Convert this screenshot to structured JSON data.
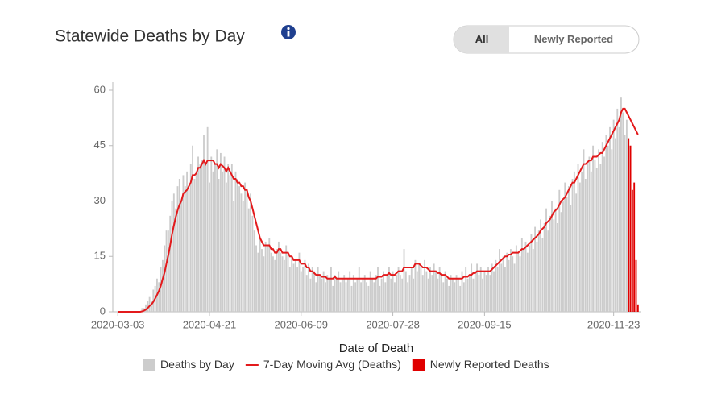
{
  "header": {
    "title": "Statewide Deaths by Day",
    "buttons": [
      "All",
      "Newly Reported"
    ]
  },
  "chart_data": {
    "type": "bar",
    "x_label": "Date of Death",
    "categories": [
      "2020-03-03",
      null,
      null,
      null,
      null,
      null,
      null,
      null,
      null,
      null,
      null,
      null,
      null,
      null,
      null,
      null,
      null,
      null,
      null,
      null,
      null,
      null,
      null,
      null,
      null,
      null,
      null,
      null,
      null,
      null,
      null,
      null,
      null,
      null,
      null,
      null,
      null,
      null,
      null,
      null,
      null,
      null,
      null,
      null,
      null,
      null,
      null,
      null,
      null,
      "2020-04-21",
      null,
      null,
      null,
      null,
      null,
      null,
      null,
      null,
      null,
      null,
      null,
      null,
      null,
      null,
      null,
      null,
      null,
      null,
      null,
      null,
      null,
      null,
      null,
      null,
      null,
      null,
      null,
      null,
      null,
      null,
      null,
      null,
      null,
      null,
      null,
      null,
      null,
      null,
      null,
      null,
      null,
      null,
      null,
      null,
      null,
      null,
      null,
      null,
      "2020-06-09",
      null,
      null,
      null,
      null,
      null,
      null,
      null,
      null,
      null,
      null,
      null,
      null,
      null,
      null,
      null,
      null,
      null,
      null,
      null,
      null,
      null,
      null,
      null,
      null,
      null,
      null,
      null,
      null,
      null,
      null,
      null,
      null,
      null,
      null,
      null,
      null,
      null,
      null,
      null,
      null,
      null,
      null,
      null,
      null,
      null,
      null,
      null,
      null,
      "2020-07-28",
      null,
      null,
      null,
      null,
      null,
      null,
      null,
      null,
      null,
      null,
      null,
      null,
      null,
      null,
      null,
      null,
      null,
      null,
      null,
      null,
      null,
      null,
      null,
      null,
      null,
      null,
      null,
      null,
      null,
      null,
      null,
      null,
      null,
      null,
      null,
      null,
      null,
      null,
      null,
      null,
      null,
      null,
      null,
      null,
      null,
      null,
      null,
      null,
      "2020-09-15",
      null,
      null,
      null,
      null,
      null,
      null,
      null,
      null,
      null,
      null,
      null,
      null,
      null,
      null,
      null,
      null,
      null,
      null,
      null,
      null,
      null,
      null,
      null,
      null,
      null,
      null,
      null,
      null,
      null,
      null,
      null,
      null,
      null,
      null,
      null,
      null,
      null,
      null,
      null,
      null,
      null,
      null,
      null,
      null,
      null,
      null,
      null,
      null,
      null,
      null,
      null,
      null,
      null,
      null,
      null,
      null,
      null,
      null,
      null,
      null,
      null,
      null,
      null,
      null,
      null,
      null,
      null,
      null,
      "2020-11-23",
      null,
      null,
      null,
      null,
      null,
      null,
      null,
      null,
      null,
      null,
      null,
      null,
      null
    ],
    "ylim": [
      0,
      60
    ],
    "yticks": [
      0,
      15,
      30,
      45,
      60
    ],
    "series": [
      {
        "name": "Deaths by Day",
        "kind": "bar",
        "color": "#cccccc",
        "values": [
          0,
          0,
          0,
          0,
          0,
          0,
          0,
          0,
          0,
          0,
          0,
          0,
          0,
          1,
          1,
          2,
          3,
          4,
          3,
          6,
          7,
          9,
          8,
          12,
          14,
          18,
          22,
          22,
          26,
          30,
          32,
          28,
          34,
          36,
          30,
          37,
          34,
          38,
          33,
          40,
          45,
          36,
          38,
          42,
          40,
          41,
          48,
          40,
          50,
          35,
          42,
          38,
          40,
          44,
          36,
          43,
          38,
          42,
          35,
          40,
          37,
          40,
          30,
          38,
          36,
          34,
          32,
          30,
          35,
          33,
          28,
          32,
          26,
          22,
          18,
          16,
          20,
          17,
          15,
          19,
          18,
          20,
          16,
          15,
          14,
          17,
          19,
          16,
          15,
          14,
          18,
          16,
          12,
          15,
          13,
          14,
          12,
          16,
          11,
          12,
          14,
          10,
          13,
          9,
          12,
          11,
          8,
          12,
          10,
          9,
          11,
          8,
          10,
          9,
          12,
          7,
          10,
          9,
          11,
          8,
          9,
          10,
          8,
          9,
          11,
          7,
          10,
          8,
          9,
          12,
          8,
          9,
          10,
          8,
          7,
          11,
          9,
          8,
          10,
          12,
          7,
          9,
          11,
          8,
          10,
          12,
          9,
          11,
          8,
          10,
          12,
          10,
          9,
          17,
          11,
          8,
          10,
          12,
          9,
          14,
          11,
          13,
          12,
          10,
          14,
          11,
          9,
          12,
          10,
          13,
          11,
          9,
          12,
          10,
          8,
          11,
          9,
          7,
          10,
          9,
          8,
          10,
          9,
          7,
          11,
          8,
          12,
          9,
          10,
          13,
          9,
          11,
          13,
          10,
          12,
          9,
          11,
          10,
          12,
          10,
          13,
          11,
          14,
          12,
          17,
          13,
          15,
          12,
          16,
          14,
          17,
          15,
          13,
          18,
          16,
          15,
          20,
          17,
          19,
          16,
          18,
          21,
          17,
          23,
          19,
          22,
          25,
          20,
          24,
          28,
          22,
          26,
          30,
          25,
          28,
          24,
          33,
          27,
          30,
          35,
          31,
          34,
          29,
          36,
          38,
          32,
          40,
          35,
          38,
          44,
          36,
          40,
          42,
          38,
          45,
          41,
          39,
          44,
          40,
          46,
          42,
          48,
          45,
          50,
          44,
          52,
          47,
          55,
          50,
          58,
          54,
          48,
          52,
          null,
          null,
          null,
          null,
          null,
          null
        ]
      },
      {
        "name": "7-Day Moving Avg (Deaths)",
        "kind": "line",
        "color": "#e31a1c",
        "values": [
          0,
          0,
          0,
          0,
          0,
          0,
          0,
          0,
          0,
          0,
          0,
          0,
          0,
          0.1,
          0.3,
          0.6,
          1,
          1.6,
          2,
          2.7,
          3.6,
          4.6,
          5.7,
          7,
          8.9,
          10.6,
          13,
          15.3,
          18,
          21,
          23.4,
          25.7,
          27.5,
          29,
          30,
          32,
          32.5,
          33,
          34,
          35,
          37,
          37,
          37.5,
          39,
          39,
          40,
          41,
          40,
          41,
          41,
          41,
          41,
          40,
          40,
          39,
          40,
          39.5,
          39,
          38,
          39,
          38,
          37,
          36,
          36,
          35,
          35,
          34,
          34,
          33,
          33,
          31,
          30,
          28,
          26,
          24,
          22,
          20,
          19,
          18,
          18,
          18,
          18,
          17,
          17,
          16,
          16,
          17,
          17,
          16,
          16,
          16,
          16,
          15,
          15,
          14,
          14,
          14,
          14,
          13,
          13,
          13,
          12,
          12,
          11,
          11,
          10.5,
          10,
          10,
          10,
          9.5,
          9.5,
          9.5,
          9,
          9,
          9,
          9,
          9.5,
          9,
          9,
          9,
          9,
          9,
          9,
          9,
          9,
          9,
          9,
          9,
          9,
          9,
          9,
          9,
          9,
          9,
          9,
          9,
          9,
          9,
          9,
          9.5,
          9.5,
          9.5,
          10,
          10,
          10,
          10.5,
          10,
          10,
          10,
          10.5,
          11,
          11,
          11,
          12,
          12,
          12,
          12,
          12,
          12,
          13,
          13,
          13,
          12.5,
          12,
          12,
          12,
          11.5,
          11,
          11,
          11,
          11,
          10.5,
          10.5,
          10,
          10,
          10,
          9.5,
          9,
          9,
          9,
          9,
          9,
          9,
          9,
          9,
          9.5,
          9.5,
          9.5,
          10,
          10,
          10.5,
          10.5,
          11,
          11,
          11,
          11,
          11,
          11,
          11,
          11,
          11.5,
          12,
          12.5,
          13,
          13.5,
          14,
          14.5,
          15,
          15,
          15.5,
          15.5,
          16,
          16,
          16,
          16,
          16.5,
          17,
          17,
          17.5,
          18,
          18.5,
          19,
          19.5,
          20,
          20.5,
          21,
          22,
          22.5,
          23,
          24,
          24.5,
          25,
          26,
          27,
          27.5,
          28,
          29,
          30,
          30.5,
          31,
          32,
          33,
          34,
          35,
          35,
          36,
          37,
          38,
          39,
          40,
          40,
          40.5,
          41,
          41,
          42,
          42,
          42,
          42.5,
          43,
          43,
          44,
          45,
          46,
          47,
          48,
          49,
          50,
          51,
          52,
          54,
          55,
          55,
          54,
          53,
          52,
          51,
          50,
          49,
          48
        ]
      },
      {
        "name": "Newly Reported Deaths",
        "kind": "bar",
        "color": "#e00000",
        "values": [
          null,
          null,
          null,
          null,
          null,
          null,
          null,
          null,
          null,
          null,
          null,
          null,
          null,
          null,
          null,
          null,
          null,
          null,
          null,
          null,
          null,
          null,
          null,
          null,
          null,
          null,
          null,
          null,
          null,
          null,
          null,
          null,
          null,
          null,
          null,
          null,
          null,
          null,
          null,
          null,
          null,
          null,
          null,
          null,
          null,
          null,
          null,
          null,
          null,
          null,
          null,
          null,
          null,
          null,
          null,
          null,
          null,
          null,
          null,
          null,
          null,
          null,
          null,
          null,
          null,
          null,
          null,
          null,
          null,
          null,
          null,
          null,
          null,
          null,
          null,
          null,
          null,
          null,
          null,
          null,
          null,
          null,
          null,
          null,
          null,
          null,
          null,
          null,
          null,
          null,
          null,
          null,
          null,
          null,
          null,
          null,
          null,
          null,
          null,
          null,
          null,
          null,
          null,
          null,
          null,
          null,
          null,
          null,
          null,
          null,
          null,
          null,
          null,
          null,
          null,
          null,
          null,
          null,
          null,
          null,
          null,
          null,
          null,
          null,
          null,
          null,
          null,
          null,
          null,
          null,
          null,
          null,
          null,
          null,
          null,
          null,
          null,
          null,
          null,
          null,
          null,
          null,
          null,
          null,
          null,
          null,
          null,
          null,
          null,
          null,
          null,
          null,
          null,
          null,
          null,
          null,
          null,
          null,
          null,
          null,
          null,
          null,
          null,
          null,
          null,
          null,
          null,
          null,
          null,
          null,
          null,
          null,
          null,
          null,
          null,
          null,
          null,
          null,
          null,
          null,
          null,
          null,
          null,
          null,
          null,
          null,
          null,
          null,
          null,
          null,
          null,
          null,
          null,
          null,
          null,
          null,
          null,
          null,
          null,
          null,
          null,
          null,
          null,
          null,
          null,
          null,
          null,
          null,
          null,
          null,
          null,
          null,
          null,
          null,
          null,
          null,
          null,
          null,
          null,
          null,
          null,
          null,
          null,
          null,
          null,
          null,
          null,
          null,
          null,
          null,
          null,
          null,
          null,
          null,
          null,
          null,
          null,
          null,
          null,
          null,
          null,
          null,
          null,
          null,
          null,
          null,
          null,
          null,
          null,
          null,
          null,
          null,
          null,
          null,
          null,
          null,
          null,
          null,
          null,
          null,
          null,
          null,
          null,
          null,
          null,
          null,
          null,
          null,
          null,
          null,
          null,
          null,
          null,
          47,
          45,
          33,
          35,
          14,
          2
        ]
      }
    ]
  }
}
